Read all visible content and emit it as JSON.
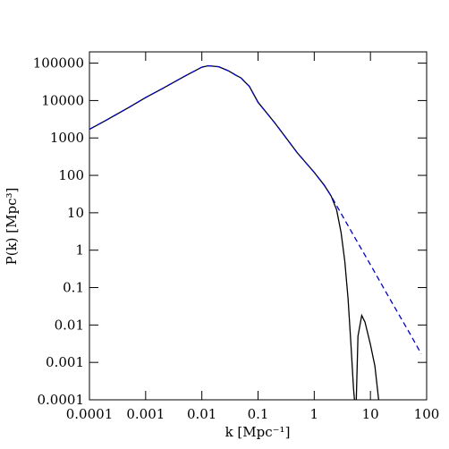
{
  "chart_data": {
    "type": "line",
    "log_x": true,
    "log_y": true,
    "xlabel": "k [Mpc⁻¹]",
    "ylabel": "P(k) [Mpc³]",
    "xlim": [
      0.0001,
      100
    ],
    "ylim": [
      0.0001,
      200000
    ],
    "xticks": [
      0.0001,
      0.001,
      0.01,
      0.1,
      1,
      10,
      100
    ],
    "yticks": [
      0.0001,
      0.001,
      0.01,
      0.1,
      1,
      10,
      100,
      1000,
      10000,
      100000
    ],
    "series": [
      {
        "color": "#000000",
        "dash": false,
        "x": [
          0.0001,
          0.0002,
          0.0005,
          0.001,
          0.002,
          0.005,
          0.01,
          0.013,
          0.02,
          0.03,
          0.04,
          0.05,
          0.06,
          0.07,
          0.1,
          0.2,
          0.5,
          1,
          1.5,
          2,
          2.5,
          3,
          3.5,
          4,
          4.5,
          5,
          5.2,
          5.4,
          5.6,
          6,
          7,
          8,
          10,
          12,
          14
        ],
        "values": [
          1700,
          3000,
          6500,
          12000,
          21000,
          45000,
          78000,
          85000,
          80000,
          62000,
          48000,
          40000,
          30000,
          24000,
          9000,
          2500,
          400,
          120,
          55,
          28,
          12,
          3,
          0.5,
          0.05,
          0.003,
          0.0002,
          0.0001,
          null,
          0.0001,
          0.005,
          0.018,
          0.012,
          0.003,
          0.0008,
          0.0001
        ]
      },
      {
        "color": "#0000cc",
        "dash": true,
        "x": [
          0.0001,
          0.0002,
          0.0005,
          0.001,
          0.002,
          0.005,
          0.01,
          0.013,
          0.02,
          0.03,
          0.04,
          0.05,
          0.06,
          0.07,
          0.1,
          0.2,
          0.5,
          1,
          1.5,
          2,
          5,
          10,
          20,
          50,
          80
        ],
        "values": [
          1700,
          3000,
          6500,
          12000,
          21000,
          45000,
          78000,
          85000,
          80000,
          62000,
          48000,
          40000,
          30000,
          24000,
          9000,
          2500,
          400,
          120,
          55,
          28,
          2.5,
          0.41,
          0.065,
          0.006,
          0.0017
        ]
      }
    ]
  }
}
